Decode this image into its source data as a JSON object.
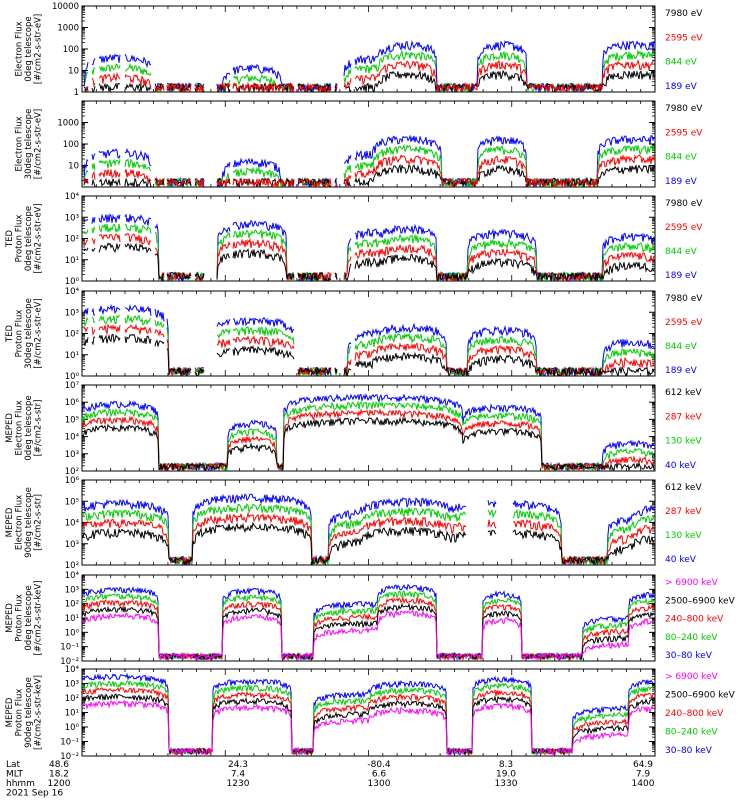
{
  "chart_data": [
    {
      "type": "line",
      "ylabel": [
        "Electron Flux",
        "0deg telescope",
        "[#/cm2-s-str-eV]"
      ],
      "ylog": true,
      "ylim": [
        1,
        10000
      ],
      "yticks": [
        {
          "value": 1,
          "label": "1"
        },
        {
          "value": 10,
          "label": "10"
        },
        {
          "value": 100,
          "label": "100"
        },
        {
          "value": 1000,
          "label": "1000"
        },
        {
          "value": 10000,
          "label": "10000"
        }
      ],
      "series": [
        {
          "name": "7980 eV",
          "color": "#000000"
        },
        {
          "name": "2595 eV",
          "color": "#ff0000"
        },
        {
          "name": "844 eV",
          "color": "#00cc00"
        },
        {
          "name": "189 eV",
          "color": "#0000ff"
        }
      ],
      "order": [
        2,
        3,
        0,
        1
      ],
      "gaps": [
        [
          0,
          1
        ],
        [
          7,
          9
        ],
        [
          14,
          16
        ],
        [
          39,
          42
        ],
        [
          70,
          72
        ],
        [
          83,
          84
        ],
        [
          110,
          112
        ],
        [
          123,
          134
        ],
        [
          149,
          150
        ],
        [
          213,
          215
        ],
        [
          250,
          252
        ],
        [
          256,
          261
        ],
        [
          270,
          272
        ]
      ],
      "events": [
        [
          0,
          40,
          35,
          1.0
        ],
        [
          0,
          13,
          30,
          1.0
        ],
        [
          0,
          37,
          30,
          0.5
        ],
        [
          1,
          160,
          30,
          0.02
        ],
        [
          1,
          158,
          25,
          0.02
        ],
        [
          2,
          165,
          30,
          0.02
        ],
        [
          2,
          195,
          30,
          0.02
        ],
        [
          3,
          170,
          27,
          0.02
        ]
      ]
    },
    {
      "type": "line",
      "ylabel": [
        "Electron Flux",
        "30deg telescope",
        "[#/cm2-s-str-eV]"
      ],
      "ylog": true,
      "ylim": [
        1,
        10000
      ],
      "yticks": [
        {
          "value": 10,
          "label": "10"
        },
        {
          "value": 100,
          "label": "100"
        },
        {
          "value": 1000,
          "label": "1000"
        }
      ],
      "series": [
        {
          "name": "7980 eV",
          "color": "#000000"
        },
        {
          "name": "2595 eV",
          "color": "#ff0000"
        },
        {
          "name": "844 eV",
          "color": "#00cc00"
        },
        {
          "name": "189 eV",
          "color": "#0000ff"
        }
      ],
      "order": [
        3,
        2,
        0,
        1
      ],
      "gaps": [
        [
          0,
          1
        ],
        [
          7,
          9
        ],
        [
          14,
          16
        ],
        [
          39,
          42
        ],
        [
          70,
          72
        ],
        [
          83,
          84
        ],
        [
          110,
          112
        ],
        [
          123,
          134
        ],
        [
          149,
          150
        ],
        [
          213,
          215
        ],
        [
          250,
          252
        ],
        [
          256,
          261
        ],
        [
          270,
          272
        ]
      ],
      "events": [
        [
          0,
          40,
          35,
          0.5
        ],
        [
          0,
          15,
          30,
          1.0
        ],
        [
          0,
          35,
          30,
          0.5
        ],
        [
          1,
          170,
          35,
          0.02
        ],
        [
          1,
          160,
          25,
          0.02
        ],
        [
          2,
          170,
          35,
          0.02
        ],
        [
          2,
          195,
          35,
          0.02
        ],
        [
          3,
          165,
          27,
          0.02
        ]
      ]
    },
    {
      "type": "line",
      "ylabel": [
        "TED",
        "Proton Flux",
        "0deg telescope",
        "[#/cm2-s-str-eV]"
      ],
      "ylog": true,
      "ylim": [
        1,
        10000
      ],
      "yticks": [
        {
          "value": 1,
          "label": "10⁰"
        },
        {
          "value": 10,
          "label": "10¹"
        },
        {
          "value": 100,
          "label": "10²"
        },
        {
          "value": 1000,
          "label": "10³"
        },
        {
          "value": 10000,
          "label": "10⁴"
        }
      ],
      "series": [
        {
          "name": "7980 eV",
          "color": "#000000"
        },
        {
          "name": "2595 eV",
          "color": "#ff0000"
        },
        {
          "name": "844 eV",
          "color": "#00cc00"
        },
        {
          "name": "189 eV",
          "color": "#0000ff"
        }
      ],
      "order": [
        3,
        2,
        1,
        0
      ],
      "gaps": [
        [
          0,
          1
        ],
        [
          7,
          9
        ],
        [
          14,
          16
        ],
        [
          39,
          42
        ],
        [
          70,
          72
        ],
        [
          83,
          84
        ],
        [
          110,
          112
        ],
        [
          123,
          134
        ],
        [
          149,
          150
        ],
        [
          213,
          215
        ],
        [
          250,
          252
        ],
        [
          256,
          261
        ],
        [
          270,
          272
        ]
      ],
      "events": [
        [
          3,
          1000,
          40,
          0.8
        ],
        [
          2,
          500,
          35,
          0.8
        ],
        [
          3,
          200,
          26,
          0.8
        ],
        [
          3,
          300,
          30,
          0.8
        ],
        [
          3,
          180,
          35,
          0.8
        ],
        [
          2,
          130,
          30,
          0.05
        ],
        [
          3,
          300,
          12,
          0.02
        ],
        [
          3,
          400,
          40,
          0.5
        ]
      ]
    },
    {
      "type": "line",
      "ylabel": [
        "TED",
        "Proton Flux",
        "30deg telescope",
        "[#/cm2-s-str-eV]"
      ],
      "ylog": true,
      "ylim": [
        1,
        10000
      ],
      "yticks": [
        {
          "value": 1,
          "label": "10⁰"
        },
        {
          "value": 10,
          "label": "10¹"
        },
        {
          "value": 100,
          "label": "10²"
        },
        {
          "value": 1000,
          "label": "10³"
        },
        {
          "value": 10000,
          "label": "10⁴"
        }
      ],
      "series": [
        {
          "name": "7980 eV",
          "color": "#000000"
        },
        {
          "name": "2595 eV",
          "color": "#ff0000"
        },
        {
          "name": "844 eV",
          "color": "#00cc00"
        },
        {
          "name": "189 eV",
          "color": "#0000ff"
        }
      ],
      "order": [
        3,
        2,
        1,
        0
      ],
      "gaps": [
        [
          0,
          1
        ],
        [
          7,
          9
        ],
        [
          14,
          16
        ],
        [
          39,
          42
        ],
        [
          70,
          72
        ],
        [
          83,
          84
        ],
        [
          110,
          112
        ],
        [
          123,
          134
        ],
        [
          149,
          150
        ],
        [
          213,
          215
        ],
        [
          250,
          252
        ],
        [
          256,
          261
        ],
        [
          270,
          272
        ]
      ],
      "events": [
        [
          3,
          1500,
          50,
          0.8
        ],
        [
          2,
          400,
          45,
          0.8
        ],
        [
          3,
          100,
          26,
          0.8
        ],
        [
          3,
          200,
          40,
          0.8
        ],
        [
          3,
          150,
          35,
          0.8
        ],
        [
          2,
          40,
          30,
          0.05
        ],
        [
          3,
          100,
          12,
          0.02
        ],
        [
          3,
          300,
          40,
          0.5
        ]
      ]
    },
    {
      "type": "line",
      "ylabel": [
        "MEPED",
        "Electron Flux",
        "0deg telescope",
        "[#/cm2-s-str]"
      ],
      "ylog": true,
      "ylim": [
        100,
        10000000
      ],
      "yticks": [
        {
          "value": 100,
          "label": "10²"
        },
        {
          "value": 1000,
          "label": "10³"
        },
        {
          "value": 10000,
          "label": "10⁴"
        },
        {
          "value": 100000,
          "label": "10⁵"
        },
        {
          "value": 1000000,
          "label": "10⁶"
        },
        {
          "value": 10000000,
          "label": "10⁷"
        }
      ],
      "series": [
        {
          "name": "612 keV",
          "color": "#000000"
        },
        {
          "name": "287 keV",
          "color": "#ff0000"
        },
        {
          "name": "130 keV",
          "color": "#00cc00"
        },
        {
          "name": "40 keV",
          "color": "#0000ff"
        }
      ],
      "order": [
        3,
        2,
        1,
        0
      ],
      "gaps": [],
      "events": [
        [
          3,
          800000,
          40,
          0.8
        ],
        [
          2,
          60000,
          25,
          0.8
        ],
        [
          3,
          2000000,
          90,
          1.0
        ],
        [
          3,
          600000,
          40,
          0.8
        ],
        [
          3,
          500000,
          40,
          0.8
        ],
        [
          3,
          4000,
          30,
          0.3
        ],
        [
          3,
          2000,
          20,
          0.3
        ],
        [
          3,
          300000,
          40,
          0.8
        ]
      ]
    },
    {
      "type": "line",
      "ylabel": [
        "MEPED",
        "Electron Flux",
        "90deg telescope",
        "[#/cm2-s-str]"
      ],
      "ylog": true,
      "ylim": [
        100,
        1000000
      ],
      "yticks": [
        {
          "value": 100,
          "label": "10²"
        },
        {
          "value": 1000,
          "label": "10³"
        },
        {
          "value": 10000,
          "label": "10⁴"
        },
        {
          "value": 100000,
          "label": "10⁵"
        },
        {
          "value": 1000000,
          "label": "10⁶"
        }
      ],
      "series": [
        {
          "name": "612 keV",
          "color": "#000000"
        },
        {
          "name": "287 keV",
          "color": "#ff0000"
        },
        {
          "name": "130 keV",
          "color": "#00cc00"
        },
        {
          "name": "40 keV",
          "color": "#0000ff"
        }
      ],
      "order": [
        3,
        2,
        1,
        0
      ],
      "gaps": [
        [
          385,
          405
        ],
        [
          415,
          430
        ]
      ],
      "events": [
        [
          3,
          80000,
          50,
          1.0
        ],
        [
          3,
          150000,
          60,
          1.0
        ],
        [
          3,
          30000,
          45,
          1.0
        ],
        [
          3,
          100000,
          50,
          1.0
        ],
        [
          3,
          80000,
          60,
          1.0
        ],
        [
          3,
          15000,
          25,
          1.0
        ],
        [
          3,
          50000,
          40,
          1.0
        ],
        [
          3,
          60000,
          50,
          1.0
        ]
      ]
    },
    {
      "type": "line",
      "ylabel": [
        "MEPED",
        "Proton Flux",
        "0deg telescope",
        "[#/cm2-s-str-keV]"
      ],
      "ylog": true,
      "ylim": [
        0.01,
        10000
      ],
      "yticks": [
        {
          "value": 0.01,
          "label": "10⁻²"
        },
        {
          "value": 0.1,
          "label": "10⁻¹"
        },
        {
          "value": 1,
          "label": "10⁰"
        },
        {
          "value": 10,
          "label": "10¹"
        },
        {
          "value": 100,
          "label": "10²"
        },
        {
          "value": 1000,
          "label": "10³"
        },
        {
          "value": 10000,
          "label": "10⁴"
        }
      ],
      "series": [
        {
          "name": "> 6900 keV",
          "color": "#ff00ff"
        },
        {
          "name": "2500–6900 keV",
          "color": "#000000"
        },
        {
          "name": "240–800 keV",
          "color": "#ff0000"
        },
        {
          "name": "80–240 keV",
          "color": "#00cc00"
        },
        {
          "name": "30–80 keV",
          "color": "#0000ff"
        }
      ],
      "order": [
        4,
        3,
        2,
        1,
        0
      ],
      "gaps": [],
      "events": [
        [
          4,
          1000,
          40,
          1.0
        ],
        [
          4,
          800,
          30,
          1.0
        ],
        [
          4,
          100,
          60,
          1.0
        ],
        [
          4,
          1500,
          30,
          1.0
        ],
        [
          4,
          500,
          20,
          1.0
        ],
        [
          4,
          10,
          50,
          0.5
        ],
        [
          4,
          500,
          40,
          1.0
        ],
        [
          4,
          800,
          40,
          1.0
        ]
      ]
    },
    {
      "type": "line",
      "ylabel": [
        "MEPED",
        "Proton Flux",
        "90deg telescope",
        "[#/cm2-s-str-keV]"
      ],
      "ylog": true,
      "ylim": [
        0.01,
        10000
      ],
      "yticks": [
        {
          "value": 0.01,
          "label": "10⁻²"
        },
        {
          "value": 0.1,
          "label": "10⁻¹"
        },
        {
          "value": 1,
          "label": "10⁰"
        },
        {
          "value": 10,
          "label": "10¹"
        },
        {
          "value": 100,
          "label": "10²"
        },
        {
          "value": 1000,
          "label": "10³"
        },
        {
          "value": 10000,
          "label": "10⁴"
        }
      ],
      "series": [
        {
          "name": "> 6900 keV",
          "color": "#ff00ff"
        },
        {
          "name": "2500–6900 keV",
          "color": "#000000"
        },
        {
          "name": "240–800 keV",
          "color": "#ff0000"
        },
        {
          "name": "80–240 keV",
          "color": "#00cc00"
        },
        {
          "name": "30–80 keV",
          "color": "#0000ff"
        }
      ],
      "order": [
        4,
        3,
        2,
        1,
        0
      ],
      "gaps": [],
      "events": [
        [
          4,
          3000,
          50,
          1.0
        ],
        [
          4,
          1500,
          40,
          1.0
        ],
        [
          4,
          200,
          60,
          1.0
        ],
        [
          4,
          1000,
          40,
          1.0
        ],
        [
          4,
          2000,
          30,
          1.0
        ],
        [
          4,
          20,
          60,
          0.5
        ],
        [
          4,
          1500,
          40,
          1.0
        ],
        [
          4,
          2000,
          40,
          1.0
        ]
      ]
    }
  ],
  "x_axis": {
    "row_labels": [
      "Lat",
      "MLT",
      "hhmm"
    ],
    "ticks": [
      {
        "lat": "48.6",
        "mlt": "18.2",
        "hhmm": "1200"
      },
      {
        "lat": "24.3",
        "mlt": "7.4",
        "hhmm": "1230"
      },
      {
        "lat": "-80.4",
        "mlt": "6.6",
        "hhmm": "1300"
      },
      {
        "lat": "8.3",
        "mlt": "19.0",
        "hhmm": "1330"
      },
      {
        "lat": "64.9",
        "mlt": "7.9",
        "hhmm": "1400"
      }
    ],
    "date": "2021 Sep 16"
  }
}
